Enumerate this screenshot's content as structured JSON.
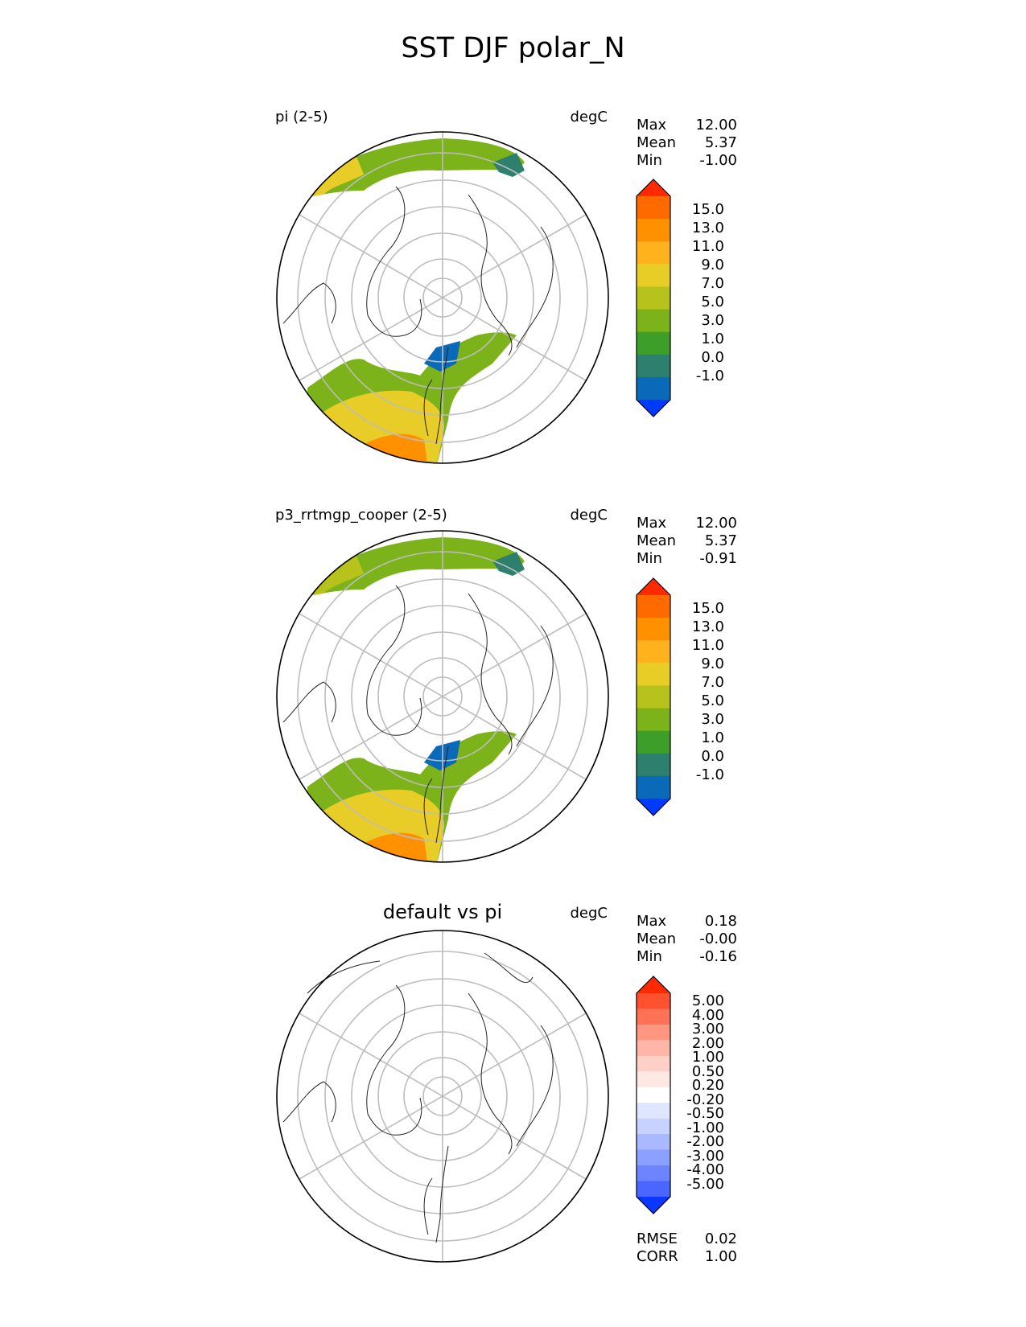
{
  "figure": {
    "title": "SST DJF polar_N"
  },
  "panels": [
    {
      "title": "pi (2-5)",
      "units": "degC",
      "stats": [
        {
          "label": "Max",
          "value": "12.00"
        },
        {
          "label": "Mean",
          "value": "5.37"
        },
        {
          "label": "Min",
          "value": "-1.00"
        }
      ],
      "colorbar": {
        "levels": [
          "15.0",
          "13.0",
          "11.0",
          "9.0",
          "7.0",
          "5.0",
          "3.0",
          "1.0",
          "0.0",
          "-1.0"
        ],
        "colors": [
          "#ff2a00",
          "#ff6a00",
          "#ff9000",
          "#ffb21d",
          "#e8cc28",
          "#b7c21d",
          "#7db31a",
          "#3e9e2a",
          "#2d7f6e",
          "#0a69b8",
          "#0039ff"
        ]
      }
    },
    {
      "title": "p3_rrtmgp_cooper (2-5)",
      "units": "degC",
      "stats": [
        {
          "label": "Max",
          "value": "12.00"
        },
        {
          "label": "Mean",
          "value": "5.37"
        },
        {
          "label": "Min",
          "value": "-0.91"
        }
      ],
      "colorbar": {
        "levels": [
          "15.0",
          "13.0",
          "11.0",
          "9.0",
          "7.0",
          "5.0",
          "3.0",
          "1.0",
          "0.0",
          "-1.0"
        ],
        "colors": [
          "#ff2a00",
          "#ff6a00",
          "#ff9000",
          "#ffb21d",
          "#e8cc28",
          "#b7c21d",
          "#7db31a",
          "#3e9e2a",
          "#2d7f6e",
          "#0a69b8",
          "#0039ff"
        ]
      }
    },
    {
      "title": "default vs pi",
      "units": "degC",
      "stats": [
        {
          "label": "Max",
          "value": "0.18"
        },
        {
          "label": "Mean",
          "value": "-0.00"
        },
        {
          "label": "Min",
          "value": "-0.16"
        }
      ],
      "colorbar": {
        "levels": [
          "5.00",
          "4.00",
          "3.00",
          "2.00",
          "1.00",
          "0.50",
          "0.20",
          "-0.20",
          "-0.50",
          "-1.00",
          "-2.00",
          "-3.00",
          "-4.00",
          "-5.00"
        ],
        "colors": [
          "#ff2a00",
          "#ff5030",
          "#ff7256",
          "#ff9680",
          "#ffb6a8",
          "#ffd0c8",
          "#ffe8e4",
          "#ffffff",
          "#e0e6ff",
          "#c8d2ff",
          "#aab8ff",
          "#8ca0ff",
          "#6c84ff",
          "#4a66ff",
          "#0a38ff"
        ]
      },
      "metrics": [
        {
          "label": "RMSE",
          "value": "0.02"
        },
        {
          "label": "CORR",
          "value": "1.00"
        }
      ]
    }
  ]
}
